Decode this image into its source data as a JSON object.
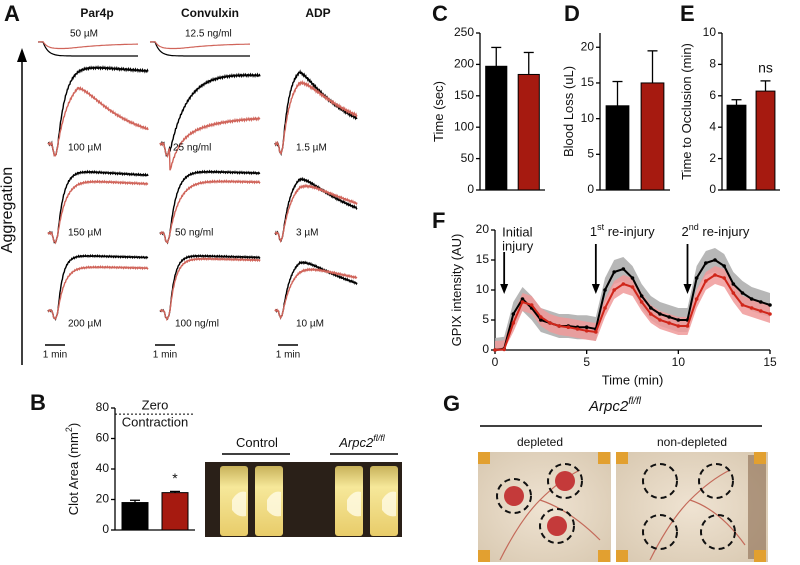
{
  "panel_a": {
    "label": "A",
    "columns": [
      "Par4p",
      "Convulxin",
      "ADP"
    ],
    "y_label": "Aggregation",
    "doses": [
      [
        "50 µM",
        "12.5 ng/ml"
      ],
      [
        "100 µM",
        "25 ng/ml",
        "1.5 µM"
      ],
      [
        "150 µM",
        "50 ng/ml",
        "3 µM"
      ],
      [
        "200 µM",
        "100 ng/ml",
        "10 µM"
      ]
    ],
    "scale": "1 min"
  },
  "panel_b_photo": {
    "groups": [
      [
        "Control"
      ],
      [
        "Arpc2",
        "fl/fl"
      ]
    ]
  },
  "panel_g": {
    "label": "G",
    "title": [
      "Arpc2",
      "fl/fl"
    ],
    "groups": [
      "depleted",
      "non-depleted"
    ]
  },
  "chart_data": [
    {
      "type": "bar",
      "label": "C",
      "y_label": [
        "Time (sec)"
      ],
      "categories": [
        null,
        null
      ],
      "values": [
        197,
        184
      ],
      "errors": [
        30,
        35
      ],
      "colors": [
        "#000000",
        "#a61a10"
      ],
      "ylim": [
        0,
        250
      ],
      "yticks": [
        0,
        50,
        100,
        150,
        200,
        250
      ]
    },
    {
      "type": "bar",
      "label": "D",
      "y_label": [
        "Blood Loss (uL)"
      ],
      "categories": [
        null,
        null
      ],
      "values": [
        11.8,
        15
      ],
      "errors": [
        3.4,
        4.5
      ],
      "colors": [
        "#000000",
        "#a61a10"
      ],
      "ylim": [
        0,
        22
      ],
      "yticks": [
        0,
        5,
        10,
        15,
        20
      ]
    },
    {
      "type": "bar",
      "label": "E",
      "y_label": [
        "Time to Occlusion (min)"
      ],
      "categories": [
        null,
        null
      ],
      "values": [
        5.4,
        6.3
      ],
      "errors": [
        0.35,
        0.65
      ],
      "colors": [
        "#000000",
        "#a61a10"
      ],
      "ylim": [
        0,
        10
      ],
      "yticks": [
        0,
        2,
        4,
        6,
        8,
        10
      ],
      "annotations": [
        {
          "text": "ns",
          "category": 1
        }
      ]
    },
    {
      "type": "line",
      "label": "F",
      "y_label": [
        "GPIX  intensity (AU)"
      ],
      "x_label": "Time (min)",
      "x": [
        0,
        0.5,
        1,
        1.5,
        2,
        2.5,
        3,
        3.5,
        4,
        4.5,
        5,
        5.5,
        6,
        6.5,
        7,
        7.5,
        8,
        8.5,
        9,
        9.5,
        10,
        10.5,
        11,
        11.5,
        12,
        12.5,
        13,
        13.5,
        14,
        14.5,
        15
      ],
      "series": [
        {
          "color": "#000000",
          "band_color": "#aaaaaa",
          "band": 2,
          "values": [
            0,
            0.2,
            6,
            8.5,
            7,
            5,
            4.5,
            4,
            4,
            3.8,
            3.8,
            3.5,
            10,
            13,
            13.5,
            12,
            9,
            7,
            6,
            5.5,
            5,
            5,
            12,
            14.5,
            15,
            14,
            11,
            9.5,
            8.5,
            8,
            7.5
          ]
        },
        {
          "color": "#d0261a",
          "band_color": "#f09a9a",
          "band": 1.5,
          "values": [
            0,
            0.1,
            4.5,
            8,
            7.5,
            5.5,
            4.5,
            4,
            3.8,
            3.5,
            3.2,
            3,
            7,
            10,
            11,
            10.5,
            8,
            6,
            5,
            4.5,
            4,
            4,
            8.5,
            11.5,
            12.5,
            12,
            9.5,
            7.5,
            7,
            6.5,
            6
          ]
        }
      ],
      "xlim": [
        0,
        15
      ],
      "xticks": [
        0,
        5,
        10,
        15
      ],
      "ylim": [
        0,
        20
      ],
      "yticks": [
        0,
        5,
        10,
        15,
        20
      ],
      "annotations": [
        {
          "x": 0.5,
          "parts": [
            "Initial",
            "injury"
          ]
        },
        {
          "x": 5.5,
          "parts": [
            "1",
            "st",
            " re-injury"
          ]
        },
        {
          "x": 10.5,
          "parts": [
            "2",
            "nd",
            " re-injury"
          ]
        }
      ]
    },
    {
      "type": "bar",
      "label": "B",
      "y_label": [
        "Clot Area (mm",
        "2",
        ")"
      ],
      "categories": [
        null,
        null
      ],
      "values": [
        18,
        24.5
      ],
      "errors": [
        1.5,
        0.8
      ],
      "colors": [
        "#000000",
        "#a61a10"
      ],
      "ylim": [
        0,
        80
      ],
      "yticks": [
        0,
        20,
        40,
        60,
        80
      ],
      "annotations": [
        {
          "text": "*",
          "category": 1
        }
      ],
      "reference_line": {
        "value": 76,
        "labels": [
          "Zero",
          "Contraction"
        ]
      }
    }
  ]
}
